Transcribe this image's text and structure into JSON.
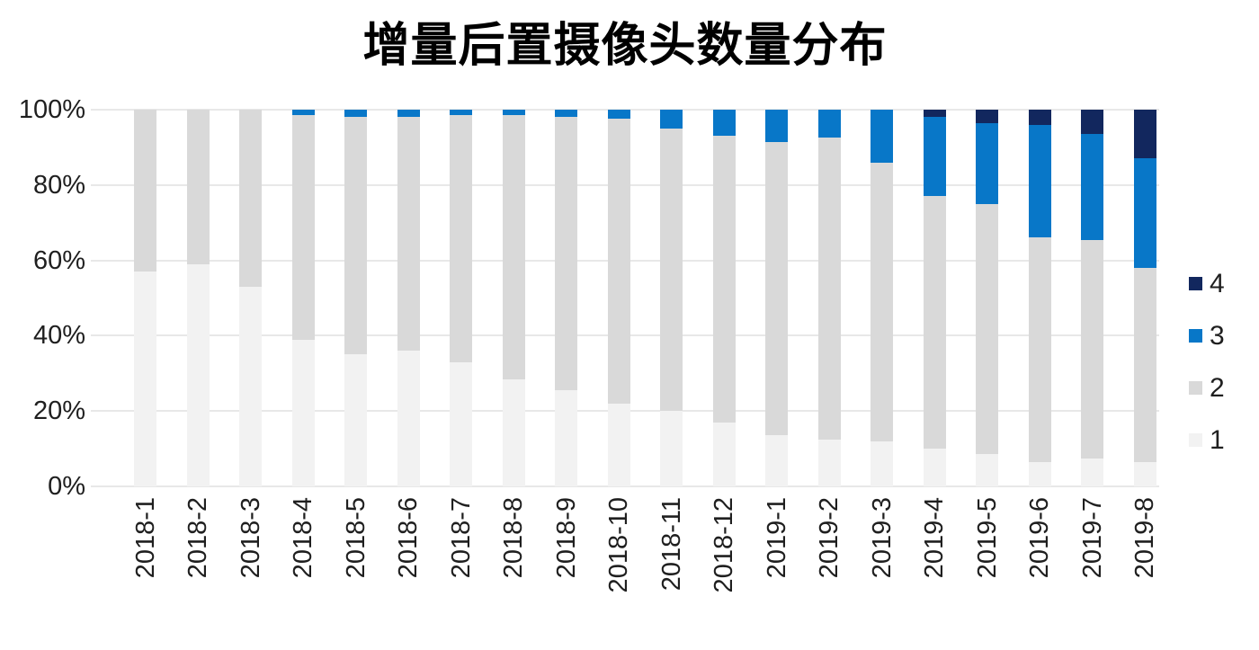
{
  "title": "增量后置摄像头数量分布",
  "chart_data": {
    "type": "bar",
    "stacked": true,
    "percent_axis": true,
    "title": "增量后置摄像头数量分布",
    "categories": [
      "2018-1",
      "2018-2",
      "2018-3",
      "2018-4",
      "2018-5",
      "2018-6",
      "2018-7",
      "2018-8",
      "2018-9",
      "2018-10",
      "2018-11",
      "2018-12",
      "2019-1",
      "2019-2",
      "2019-3",
      "2019-4",
      "2019-5",
      "2019-6",
      "2019-7",
      "2019-8"
    ],
    "series": [
      {
        "name": "1",
        "color": "#F2F2F2",
        "values": [
          57,
          59,
          53,
          39,
          35,
          36,
          33,
          28.5,
          25.5,
          22,
          20,
          17,
          13.5,
          12.5,
          12,
          10,
          8.5,
          6.5,
          7.5,
          6.5
        ]
      },
      {
        "name": "2",
        "color": "#D9D9D9",
        "values": [
          43,
          41,
          47,
          59.5,
          63,
          62,
          65.5,
          70,
          72.5,
          75.5,
          75,
          76,
          78,
          80,
          74,
          67,
          66.5,
          59.5,
          58,
          51.5
        ]
      },
      {
        "name": "3",
        "color": "#0877C8",
        "values": [
          0,
          0,
          0,
          1.5,
          2,
          2,
          1.5,
          1.5,
          2,
          2.5,
          5,
          7,
          8.5,
          7.5,
          14,
          21,
          21.5,
          30,
          28,
          29
        ]
      },
      {
        "name": "4",
        "color": "#12275E",
        "values": [
          0,
          0,
          0,
          0,
          0,
          0,
          0,
          0,
          0,
          0,
          0,
          0,
          0,
          0,
          0,
          2,
          3.5,
          4,
          6.5,
          13
        ]
      }
    ],
    "ylim": [
      0,
      100
    ],
    "y_ticks": [
      "0%",
      "20%",
      "40%",
      "60%",
      "80%",
      "100%"
    ],
    "y_tick_values": [
      0,
      20,
      40,
      60,
      80,
      100
    ],
    "grid": true,
    "legend_position": "right",
    "legend_order": [
      "4",
      "3",
      "2",
      "1"
    ],
    "colors": {
      "cameras_4": "#12275E",
      "cameras_3": "#0877C8",
      "cameras_2": "#D9D9D9",
      "cameras_1": "#F2F2F2",
      "gridline": "#E8E8E8",
      "axis_text": "#1F1F1F"
    }
  }
}
